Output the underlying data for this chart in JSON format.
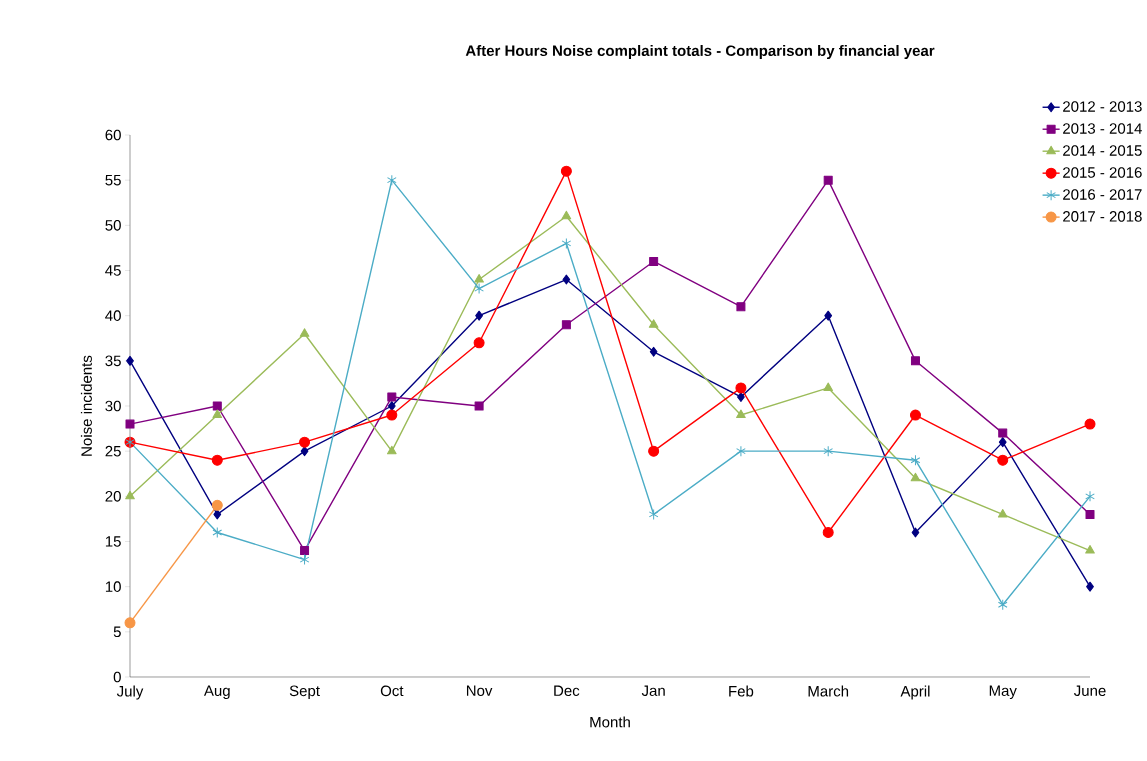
{
  "chart_data": {
    "type": "line",
    "title": "After Hours Noise complaint totals - Comparison by financial year",
    "xlabel": "Month",
    "ylabel": "Noise incidents",
    "categories": [
      "July",
      "Aug",
      "Sept",
      "Oct",
      "Nov",
      "Dec",
      "Jan",
      "Feb",
      "March",
      "April",
      "May",
      "June"
    ],
    "ylim": [
      0,
      60
    ],
    "yticks": [
      0,
      5,
      10,
      15,
      20,
      25,
      30,
      35,
      40,
      45,
      50,
      55,
      60
    ],
    "legend": "top right",
    "series": [
      {
        "name": "2012 - 2013",
        "color": "#000080",
        "marker": "diamond",
        "values": [
          35,
          18,
          25,
          30,
          40,
          44,
          36,
          31,
          40,
          16,
          26,
          10
        ]
      },
      {
        "name": "2013 - 2014",
        "color": "#800080",
        "marker": "square",
        "values": [
          28,
          30,
          14,
          31,
          30,
          39,
          46,
          41,
          55,
          35,
          27,
          18
        ]
      },
      {
        "name": "2014 - 2015",
        "color": "#9bbb59",
        "marker": "triangle",
        "values": [
          20,
          29,
          38,
          25,
          44,
          51,
          39,
          29,
          32,
          22,
          18,
          14
        ]
      },
      {
        "name": "2015 - 2016",
        "color": "#ff0000",
        "marker": "circle",
        "values": [
          26,
          24,
          26,
          29,
          37,
          56,
          25,
          32,
          16,
          29,
          24,
          28
        ]
      },
      {
        "name": "2016 - 2017",
        "color": "#4bacc6",
        "marker": "cross",
        "values": [
          26,
          16,
          13,
          55,
          43,
          48,
          18,
          25,
          25,
          24,
          8,
          20
        ]
      },
      {
        "name": "2017 - 2018",
        "color": "#f79646",
        "marker": "circle",
        "values": [
          6,
          19,
          null,
          null,
          null,
          null,
          null,
          null,
          null,
          null,
          null,
          null
        ]
      }
    ]
  }
}
